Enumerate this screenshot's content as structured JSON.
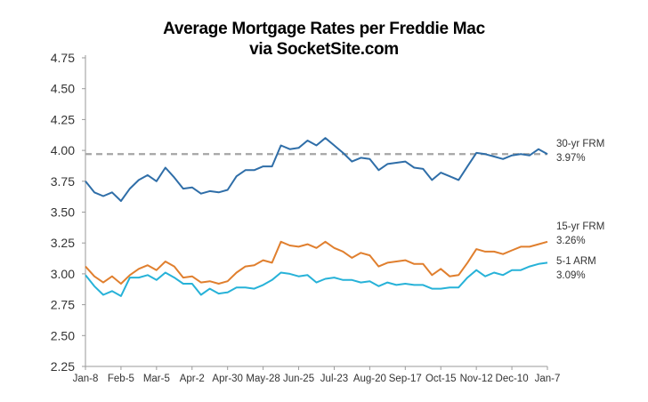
{
  "chart_data": {
    "type": "line",
    "title": "Average Mortgage Rates per Freddie Mac",
    "subtitle": "via SocketSite.com",
    "ylim": [
      2.25,
      4.75
    ],
    "y_ticks": [
      "2.25",
      "2.50",
      "2.75",
      "3.00",
      "3.25",
      "3.50",
      "3.75",
      "4.00",
      "4.25",
      "4.50",
      "4.75"
    ],
    "x_ticks": [
      "Jan-8",
      "Feb-5",
      "Mar-5",
      "Apr-2",
      "Apr-30",
      "May-28",
      "Jun-25",
      "Jul-23",
      "Aug-20",
      "Sep-17",
      "Oct-15",
      "Nov-12",
      "Dec-10",
      "Jan-7"
    ],
    "grid": false,
    "reference_line": {
      "value": 3.97,
      "style": "dashed"
    },
    "series": [
      {
        "name": "30-yr FRM",
        "end_label": "3.97%",
        "color": "#2f6ea8",
        "values": [
          3.75,
          3.66,
          3.63,
          3.66,
          3.59,
          3.69,
          3.76,
          3.8,
          3.75,
          3.86,
          3.78,
          3.69,
          3.7,
          3.65,
          3.67,
          3.66,
          3.68,
          3.79,
          3.84,
          3.84,
          3.87,
          3.87,
          4.04,
          4.01,
          4.02,
          4.08,
          4.04,
          4.1,
          4.04,
          3.98,
          3.91,
          3.94,
          3.93,
          3.84,
          3.89,
          3.9,
          3.91,
          3.86,
          3.85,
          3.76,
          3.82,
          3.79,
          3.76,
          3.87,
          3.98,
          3.97,
          3.95,
          3.93,
          3.96,
          3.97,
          3.96,
          4.01,
          3.97
        ]
      },
      {
        "name": "15-yr FRM",
        "end_label": "3.26%",
        "color": "#e07f2e",
        "values": [
          3.06,
          2.98,
          2.93,
          2.98,
          2.92,
          2.99,
          3.04,
          3.07,
          3.03,
          3.1,
          3.06,
          2.97,
          2.98,
          2.93,
          2.94,
          2.92,
          2.94,
          3.01,
          3.06,
          3.07,
          3.11,
          3.09,
          3.26,
          3.23,
          3.22,
          3.24,
          3.21,
          3.26,
          3.21,
          3.18,
          3.13,
          3.17,
          3.15,
          3.06,
          3.09,
          3.1,
          3.11,
          3.08,
          3.08,
          2.99,
          3.04,
          2.98,
          2.99,
          3.09,
          3.2,
          3.18,
          3.18,
          3.16,
          3.19,
          3.22,
          3.22,
          3.24,
          3.26
        ]
      },
      {
        "name": "5-1 ARM",
        "end_label": "3.09%",
        "color": "#27b2d8",
        "values": [
          2.99,
          2.9,
          2.83,
          2.86,
          2.82,
          2.97,
          2.97,
          2.99,
          2.95,
          3.01,
          2.97,
          2.92,
          2.92,
          2.83,
          2.88,
          2.84,
          2.85,
          2.89,
          2.89,
          2.88,
          2.91,
          2.95,
          3.01,
          3.0,
          2.98,
          2.99,
          2.93,
          2.96,
          2.97,
          2.95,
          2.95,
          2.93,
          2.94,
          2.9,
          2.93,
          2.91,
          2.92,
          2.91,
          2.91,
          2.88,
          2.88,
          2.89,
          2.89,
          2.97,
          3.03,
          2.98,
          3.01,
          2.99,
          3.03,
          3.03,
          3.06,
          3.08,
          3.09
        ]
      }
    ]
  }
}
